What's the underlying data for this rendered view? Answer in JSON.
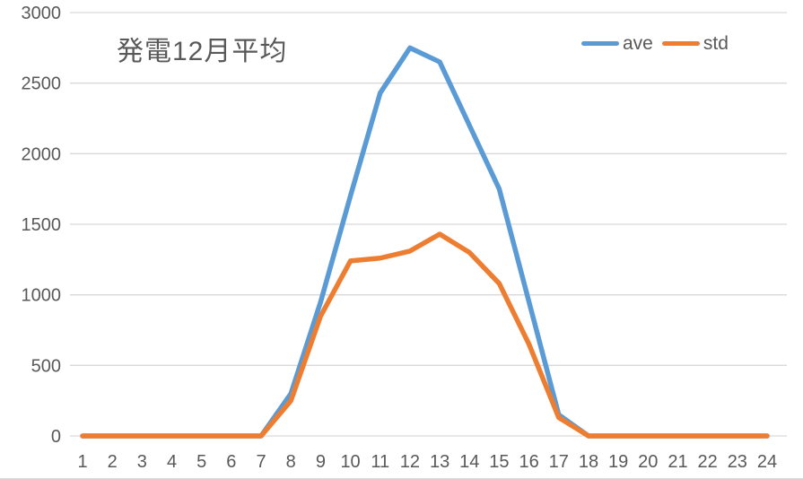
{
  "chart_data": {
    "type": "line",
    "title": "発電12月平均",
    "x_categories": [
      "1",
      "2",
      "3",
      "4",
      "5",
      "6",
      "7",
      "8",
      "9",
      "10",
      "11",
      "12",
      "13",
      "14",
      "15",
      "16",
      "17",
      "18",
      "19",
      "20",
      "21",
      "22",
      "23",
      "24"
    ],
    "series": [
      {
        "name": "ave",
        "color": "#5B9BD5",
        "values": [
          0,
          0,
          0,
          0,
          0,
          0,
          0,
          300,
          950,
          1700,
          2430,
          2750,
          2650,
          2200,
          1750,
          950,
          150,
          0,
          0,
          0,
          0,
          0,
          0,
          0
        ]
      },
      {
        "name": "std",
        "color": "#ED7D31",
        "values": [
          0,
          0,
          0,
          0,
          0,
          0,
          0,
          250,
          850,
          1240,
          1260,
          1310,
          1430,
          1300,
          1080,
          650,
          130,
          0,
          0,
          0,
          0,
          0,
          0,
          0
        ]
      }
    ],
    "xlabel": "",
    "ylabel": "",
    "ylim": [
      0,
      3000
    ],
    "ytick_step": 500,
    "ytick_labels": [
      "0",
      "500",
      "1000",
      "1500",
      "2000",
      "2500",
      "3000"
    ],
    "grid": "horizontal",
    "legend_position": "top-right",
    "colors": {
      "gridline": "#D9D9D9",
      "axis_text": "#595959",
      "title_text": "#595959",
      "background": "#FFFFFF"
    }
  }
}
